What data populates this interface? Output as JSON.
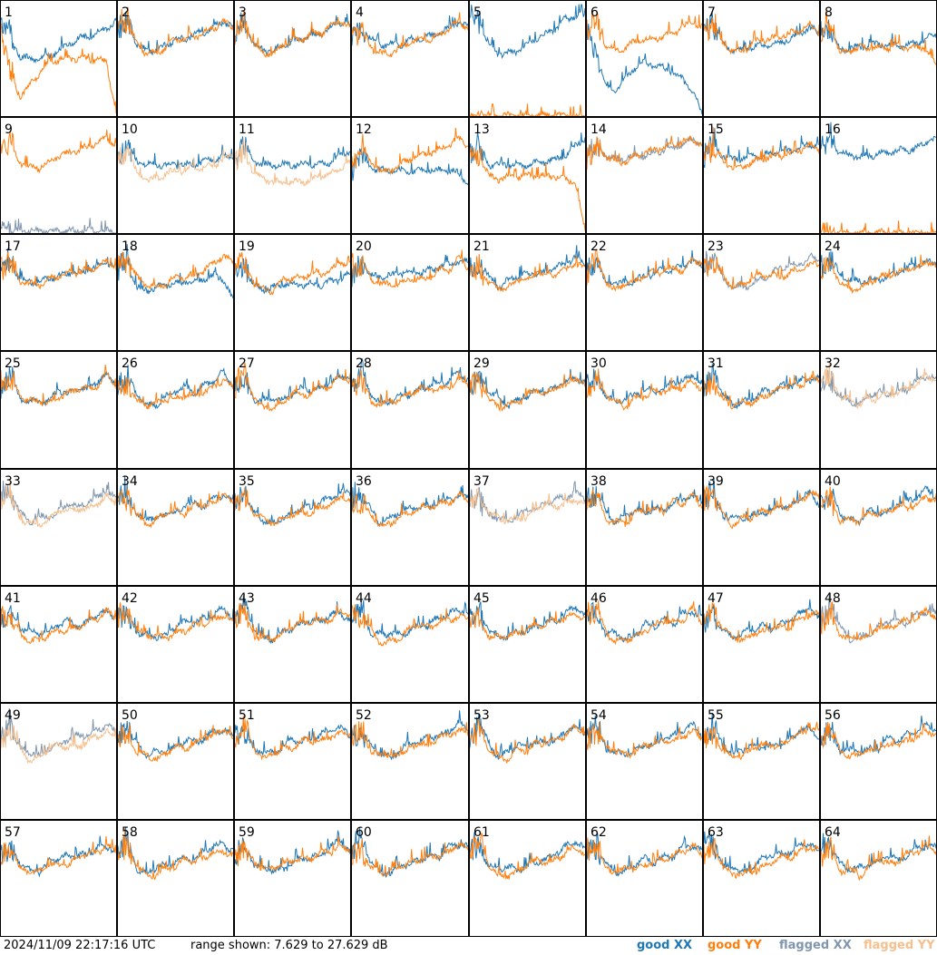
{
  "footer": {
    "timestamp": "2024/11/09 22:17:16 UTC",
    "range_text": "range shown: 7.629 to 27.629 dB"
  },
  "legend": [
    {
      "label": "good XX",
      "color": "#1f77b4"
    },
    {
      "label": "good YY",
      "color": "#ff7f0e"
    },
    {
      "label": "flagged XX",
      "color": "#7f96ad"
    },
    {
      "label": "flagged YY",
      "color": "#f5bf8e"
    }
  ],
  "chart_data": {
    "type": "line",
    "grid": "8x8 small multiples",
    "unit": "dB",
    "ylim": [
      7.629,
      27.629
    ],
    "x": "frequency channel (0-1, unlabeled)",
    "panels": [
      {
        "id": "1",
        "xx": "good",
        "yy": "good",
        "xx_level": [
          24,
          22,
          18,
          17.5,
          17.8,
          18,
          19,
          20,
          21,
          21.5,
          22,
          23,
          24
        ],
        "yy_level": [
          23,
          15,
          11,
          13,
          15,
          17,
          17.5,
          17.6,
          17.6,
          17.5,
          17.4,
          17,
          8
        ]
      },
      {
        "id": "2",
        "xx": "good",
        "yy": "good",
        "xx_level": [
          23,
          24,
          20,
          19,
          19,
          20,
          21,
          21,
          22,
          22,
          23,
          24,
          23
        ],
        "yy_level": [
          23,
          24,
          20,
          18.5,
          18.5,
          19.5,
          21,
          21,
          21.5,
          22,
          23,
          24,
          23
        ]
      },
      {
        "id": "3",
        "xx": "good",
        "yy": "good",
        "xx_level": [
          22,
          24,
          20,
          19,
          19,
          20,
          20.5,
          21,
          21.5,
          22,
          23,
          24,
          23
        ],
        "yy_level": [
          22,
          24,
          20,
          18.5,
          18.5,
          20,
          21,
          21,
          22,
          22,
          23.5,
          24,
          23
        ]
      },
      {
        "id": "4",
        "xx": "good",
        "yy": "good",
        "xx_level": [
          21,
          23,
          21,
          20,
          20,
          20,
          21,
          21,
          21.5,
          22,
          23,
          24,
          23
        ],
        "yy_level": [
          21,
          23,
          19.5,
          18.5,
          18.5,
          19.5,
          20.5,
          21,
          21,
          21.5,
          23,
          24,
          23
        ]
      },
      {
        "id": "5",
        "xx": "good",
        "yy": "good",
        "xx_level": [
          25,
          24,
          20,
          18.5,
          18.5,
          19,
          20,
          21,
          22,
          23,
          24.5,
          25,
          25
        ],
        "yy_level": [
          7.7,
          7.7,
          7.7,
          7.7,
          7.7,
          7.7,
          7.7,
          7.7,
          7.7,
          7.7,
          7.7,
          7.7,
          7.7
        ]
      },
      {
        "id": "6",
        "xx": "good",
        "yy": "good",
        "xx_level": [
          23,
          18,
          13,
          12,
          14,
          16,
          17,
          16.5,
          16,
          15,
          14,
          12,
          8
        ],
        "yy_level": [
          23,
          24,
          20,
          19,
          19.5,
          20.5,
          21,
          21,
          21.5,
          22,
          23,
          24,
          23
        ]
      },
      {
        "id": "7",
        "xx": "good",
        "yy": "good",
        "xx_level": [
          22,
          24,
          20,
          19,
          19,
          19.5,
          20,
          20,
          20.5,
          21,
          22,
          23,
          22
        ],
        "yy_level": [
          22,
          24,
          20,
          19,
          19,
          20,
          21,
          21,
          21.5,
          22,
          22.5,
          23.5,
          22
        ]
      },
      {
        "id": "8",
        "xx": "good",
        "yy": "good",
        "xx_level": [
          22,
          23,
          19,
          19.5,
          19.5,
          20,
          20,
          20,
          20,
          20,
          20.5,
          21,
          22
        ],
        "yy_level": [
          22,
          24,
          18.5,
          19,
          19.5,
          19.5,
          19.6,
          19.6,
          19.6,
          19.6,
          19.5,
          19.5,
          16
        ]
      },
      {
        "id": "9",
        "xx": "flagged",
        "yy": "good",
        "xx_level": [
          10,
          8,
          8,
          8,
          8,
          8,
          8,
          8,
          8,
          8,
          8,
          8,
          8
        ],
        "yy_level": [
          22,
          23,
          20,
          19,
          19,
          20,
          21,
          21.5,
          22,
          22.5,
          23.5,
          24,
          23
        ]
      },
      {
        "id": "10",
        "xx": "good",
        "yy": "flagged",
        "xx_level": [
          21,
          23,
          20,
          19.5,
          19.5,
          19.5,
          19.5,
          19.5,
          19.5,
          20,
          20.5,
          21,
          21
        ],
        "yy_level": [
          20,
          22,
          18,
          17,
          17,
          18,
          18.5,
          18.5,
          19,
          19,
          19.5,
          20.5,
          21
        ]
      },
      {
        "id": "11",
        "xx": "good",
        "yy": "flagged",
        "xx_level": [
          21,
          23,
          20,
          19.5,
          19.5,
          19.5,
          19.5,
          19.5,
          19.5,
          19.5,
          20,
          21,
          22
        ],
        "yy_level": [
          20,
          22,
          18,
          17,
          16.5,
          16.5,
          16.5,
          16.5,
          17,
          17.5,
          18,
          19,
          20
        ]
      },
      {
        "id": "12",
        "xx": "good",
        "yy": "good",
        "xx_level": [
          19,
          21,
          19,
          18.5,
          18.5,
          18.5,
          18.5,
          18.5,
          18.5,
          18.5,
          18.5,
          18,
          16
        ],
        "yy_level": [
          20,
          22,
          20,
          18.5,
          18.5,
          19.5,
          20.5,
          21,
          21.5,
          22,
          23,
          24,
          23
        ]
      },
      {
        "id": "13",
        "xx": "good",
        "yy": "good",
        "xx_level": [
          21,
          23,
          19.5,
          19.5,
          19.5,
          19.5,
          19.5,
          20,
          20,
          20.5,
          21,
          23,
          24
        ],
        "yy_level": [
          22,
          21,
          17.5,
          17,
          17.5,
          17.5,
          17.5,
          17.5,
          17.5,
          17.5,
          17,
          16.5,
          8
        ]
      },
      {
        "id": "14",
        "xx": "flagged",
        "yy": "good",
        "xx_level": [
          22,
          23,
          21,
          20.5,
          20.5,
          21,
          21,
          21.5,
          22,
          22.5,
          23,
          24,
          23
        ],
        "yy_level": [
          21,
          23,
          21,
          20,
          20,
          21,
          21.5,
          22,
          22.5,
          23,
          23.5,
          24,
          23
        ]
      },
      {
        "id": "15",
        "xx": "good",
        "yy": "good",
        "xx_level": [
          21,
          23,
          21,
          20.5,
          20.5,
          21,
          21,
          21.5,
          22,
          22,
          22.5,
          23,
          23
        ],
        "yy_level": [
          21,
          23,
          20,
          19,
          19,
          20,
          20.5,
          21,
          21,
          21.5,
          22,
          23,
          22
        ]
      },
      {
        "id": "16",
        "xx": "good",
        "yy": "good",
        "xx_level": [
          23,
          24,
          21.5,
          21,
          21,
          21,
          21.5,
          21.5,
          22,
          22,
          22.5,
          23.5,
          24
        ],
        "yy_level": [
          7.7,
          7.7,
          7.7,
          7.7,
          7.7,
          7.7,
          7.7,
          7.7,
          7.7,
          7.7,
          7.7,
          7.7,
          7.7
        ]
      },
      {
        "id": "17",
        "xx": "good",
        "yy": "good",
        "xx_level": [
          22,
          23,
          20,
          19.5,
          19.5,
          20,
          20.5,
          21,
          21,
          21.5,
          22,
          23,
          22
        ],
        "yy_level": [
          22,
          23,
          19.5,
          19,
          19,
          20,
          20.5,
          21,
          21,
          21.5,
          22,
          23,
          22
        ]
      },
      {
        "id": "18",
        "xx": "good",
        "yy": "good",
        "xx_level": [
          22,
          23,
          18.5,
          18,
          18.5,
          19,
          19,
          19.5,
          19.5,
          20,
          20.5,
          20,
          16
        ]
      },
      {
        "id": "19",
        "xx": "good",
        "yy": "good",
        "xx_level": [
          21,
          22,
          19,
          18,
          18.5,
          19,
          19,
          19,
          19,
          19,
          19.5,
          20,
          21
        ]
      },
      {
        "id": "20",
        "xx": "good",
        "yy": "good",
        "xx_level": [
          20,
          23,
          20.5,
          20.5,
          20.5,
          21,
          21,
          21,
          21.5,
          22,
          22.5,
          23,
          23
        ]
      },
      {
        "id": "21",
        "xx": "good",
        "yy": "good"
      },
      {
        "id": "22",
        "xx": "good",
        "yy": "good"
      },
      {
        "id": "23",
        "xx": "flagged",
        "yy": "good"
      },
      {
        "id": "24",
        "xx": "good",
        "yy": "good"
      },
      {
        "id": "25",
        "xx": "good",
        "yy": "good"
      },
      {
        "id": "26",
        "xx": "good",
        "yy": "good"
      },
      {
        "id": "27",
        "xx": "good",
        "yy": "good"
      },
      {
        "id": "28",
        "xx": "good",
        "yy": "good"
      },
      {
        "id": "29",
        "xx": "good",
        "yy": "good"
      },
      {
        "id": "30",
        "xx": "good",
        "yy": "good"
      },
      {
        "id": "31",
        "xx": "good",
        "yy": "good"
      },
      {
        "id": "32",
        "xx": "flagged",
        "yy": "flagged"
      },
      {
        "id": "33",
        "xx": "flagged",
        "yy": "flagged"
      },
      {
        "id": "34",
        "xx": "good",
        "yy": "good"
      },
      {
        "id": "35",
        "xx": "good",
        "yy": "good"
      },
      {
        "id": "36",
        "xx": "good",
        "yy": "good"
      },
      {
        "id": "37",
        "xx": "flagged",
        "yy": "flagged"
      },
      {
        "id": "38",
        "xx": "good",
        "yy": "good"
      },
      {
        "id": "39",
        "xx": "good",
        "yy": "good"
      },
      {
        "id": "40",
        "xx": "good",
        "yy": "good"
      },
      {
        "id": "41",
        "xx": "good",
        "yy": "good"
      },
      {
        "id": "42",
        "xx": "good",
        "yy": "good"
      },
      {
        "id": "43",
        "xx": "good",
        "yy": "good"
      },
      {
        "id": "44",
        "xx": "good",
        "yy": "good"
      },
      {
        "id": "45",
        "xx": "good",
        "yy": "good"
      },
      {
        "id": "46",
        "xx": "good",
        "yy": "good"
      },
      {
        "id": "47",
        "xx": "good",
        "yy": "good"
      },
      {
        "id": "48",
        "xx": "flagged",
        "yy": "good"
      },
      {
        "id": "49",
        "xx": "flagged",
        "yy": "flagged"
      },
      {
        "id": "50",
        "xx": "good",
        "yy": "good"
      },
      {
        "id": "51",
        "xx": "good",
        "yy": "good"
      },
      {
        "id": "52",
        "xx": "good",
        "yy": "good"
      },
      {
        "id": "53",
        "xx": "good",
        "yy": "good"
      },
      {
        "id": "54",
        "xx": "good",
        "yy": "good"
      },
      {
        "id": "55",
        "xx": "good",
        "yy": "good"
      },
      {
        "id": "56",
        "xx": "good",
        "yy": "good"
      },
      {
        "id": "57",
        "xx": "good",
        "yy": "good"
      },
      {
        "id": "58",
        "xx": "good",
        "yy": "good"
      },
      {
        "id": "59",
        "xx": "good",
        "yy": "good"
      },
      {
        "id": "60",
        "xx": "good",
        "yy": "good"
      },
      {
        "id": "61",
        "xx": "good",
        "yy": "good"
      },
      {
        "id": "62",
        "xx": "good",
        "yy": "good"
      },
      {
        "id": "63",
        "xx": "good",
        "yy": "good"
      },
      {
        "id": "64",
        "xx": "good",
        "yy": "good"
      }
    ]
  }
}
